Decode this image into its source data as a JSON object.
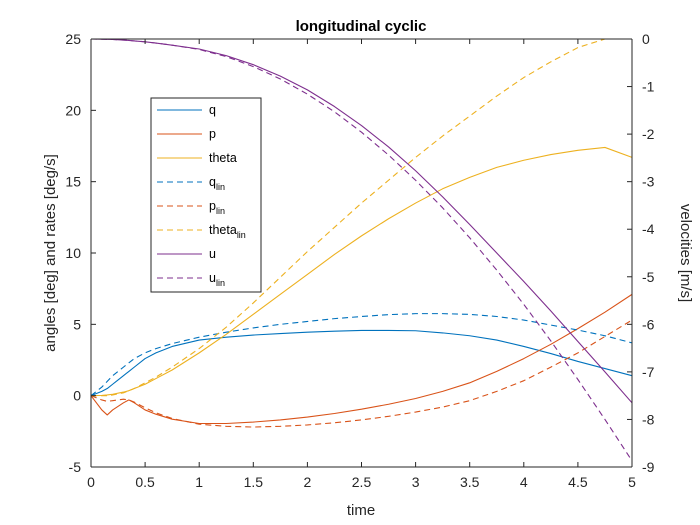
{
  "chart_data": {
    "type": "line",
    "title": "longitudinal cyclic",
    "xlabel": "time",
    "ylabel_left": "angles [deg] and rates [deg/s]",
    "ylabel_right": "velocities [m/s]",
    "xlim": [
      0,
      5
    ],
    "ylim_left": [
      -5,
      25
    ],
    "ylim_right": [
      -9,
      0
    ],
    "x_ticks": [
      "0",
      "0.5",
      "1",
      "1.5",
      "2",
      "2.5",
      "3",
      "3.5",
      "4",
      "4.5",
      "5"
    ],
    "y_left_ticks": [
      "-5",
      "0",
      "5",
      "10",
      "15",
      "20",
      "25"
    ],
    "y_right_ticks": [
      "-9",
      "-8",
      "-7",
      "-6",
      "-5",
      "-4",
      "-3",
      "-2",
      "-1",
      "0"
    ],
    "grid": false,
    "legend_placement": "upper-left-inside",
    "x": [
      0,
      0.1,
      0.15,
      0.2,
      0.3,
      0.35,
      0.4,
      0.5,
      0.6,
      0.75,
      1.0,
      1.25,
      1.5,
      1.75,
      2.0,
      2.25,
      2.5,
      2.75,
      3.0,
      3.25,
      3.5,
      3.75,
      4.0,
      4.25,
      4.5,
      4.75,
      5.0
    ],
    "series": [
      {
        "name": "q",
        "base": "q",
        "sub": "",
        "axis": "left",
        "color": "#0072BD",
        "dash": false,
        "values": [
          0,
          0.3,
          0.5,
          0.8,
          1.4,
          1.7,
          2.0,
          2.6,
          3.0,
          3.45,
          3.9,
          4.1,
          4.25,
          4.35,
          4.45,
          4.52,
          4.57,
          4.57,
          4.55,
          4.4,
          4.2,
          3.9,
          3.45,
          2.95,
          2.4,
          1.9,
          1.4
        ]
      },
      {
        "name": "p",
        "base": "p",
        "sub": "",
        "axis": "left",
        "color": "#D95319",
        "dash": false,
        "values": [
          0,
          -1.0,
          -1.35,
          -1.0,
          -0.5,
          -0.3,
          -0.5,
          -1.0,
          -1.3,
          -1.65,
          -1.95,
          -1.95,
          -1.85,
          -1.7,
          -1.5,
          -1.25,
          -0.95,
          -0.6,
          -0.2,
          0.3,
          0.9,
          1.7,
          2.6,
          3.6,
          4.7,
          5.85,
          7.1
        ]
      },
      {
        "name": "theta",
        "base": "theta",
        "sub": "",
        "axis": "left",
        "color": "#EDB120",
        "dash": false,
        "values": [
          0,
          0.02,
          0.05,
          0.1,
          0.25,
          0.35,
          0.5,
          0.8,
          1.2,
          1.8,
          3.0,
          4.3,
          5.7,
          7.1,
          8.5,
          9.9,
          11.2,
          12.4,
          13.5,
          14.5,
          15.3,
          16.0,
          16.5,
          16.9,
          17.2,
          17.4,
          16.7
        ]
      },
      {
        "name": "q_lin",
        "base": "q",
        "sub": "lin",
        "axis": "left",
        "color": "#0072BD",
        "dash": true,
        "values": [
          0,
          0.6,
          1.0,
          1.4,
          2.0,
          2.3,
          2.6,
          3.0,
          3.3,
          3.65,
          4.1,
          4.45,
          4.75,
          5.0,
          5.2,
          5.4,
          5.55,
          5.68,
          5.75,
          5.75,
          5.7,
          5.55,
          5.3,
          4.95,
          4.6,
          4.2,
          3.7
        ]
      },
      {
        "name": "p_lin",
        "base": "p",
        "sub": "lin",
        "axis": "left",
        "color": "#D95319",
        "dash": true,
        "values": [
          0,
          -0.3,
          -0.4,
          -0.35,
          -0.25,
          -0.3,
          -0.45,
          -0.85,
          -1.2,
          -1.6,
          -2.0,
          -2.15,
          -2.2,
          -2.15,
          -2.05,
          -1.9,
          -1.7,
          -1.45,
          -1.15,
          -0.8,
          -0.35,
          0.3,
          1.05,
          2.0,
          3.0,
          4.15,
          5.3
        ]
      },
      {
        "name": "theta_lin",
        "base": "theta",
        "sub": "lin",
        "axis": "left",
        "color": "#EDB120",
        "dash": true,
        "values": [
          0,
          0.0,
          0.0,
          0.05,
          0.2,
          0.35,
          0.5,
          0.9,
          1.3,
          2.0,
          3.3,
          4.8,
          6.5,
          8.3,
          10.1,
          11.8,
          13.5,
          15.1,
          16.7,
          18.2,
          19.6,
          21.0,
          22.3,
          23.4,
          24.4,
          25.3,
          26.2
        ]
      },
      {
        "name": "u",
        "base": "u",
        "sub": "",
        "axis": "right",
        "color": "#7E2F8E",
        "dash": false,
        "values": [
          0,
          -0.003,
          -0.006,
          -0.01,
          -0.022,
          -0.03,
          -0.04,
          -0.06,
          -0.085,
          -0.13,
          -0.21,
          -0.35,
          -0.54,
          -0.78,
          -1.07,
          -1.42,
          -1.82,
          -2.27,
          -2.77,
          -3.32,
          -3.9,
          -4.5,
          -5.1,
          -5.72,
          -6.36,
          -7.0,
          -7.65
        ]
      },
      {
        "name": "u_lin",
        "base": "u",
        "sub": "lin",
        "axis": "right",
        "color": "#7E2F8E",
        "dash": true,
        "values": [
          0,
          -0.003,
          -0.006,
          -0.01,
          -0.022,
          -0.03,
          -0.04,
          -0.06,
          -0.085,
          -0.13,
          -0.22,
          -0.37,
          -0.58,
          -0.84,
          -1.16,
          -1.53,
          -1.96,
          -2.44,
          -2.97,
          -3.55,
          -4.18,
          -4.86,
          -5.58,
          -6.35,
          -7.16,
          -8.0,
          -8.87
        ]
      }
    ]
  }
}
